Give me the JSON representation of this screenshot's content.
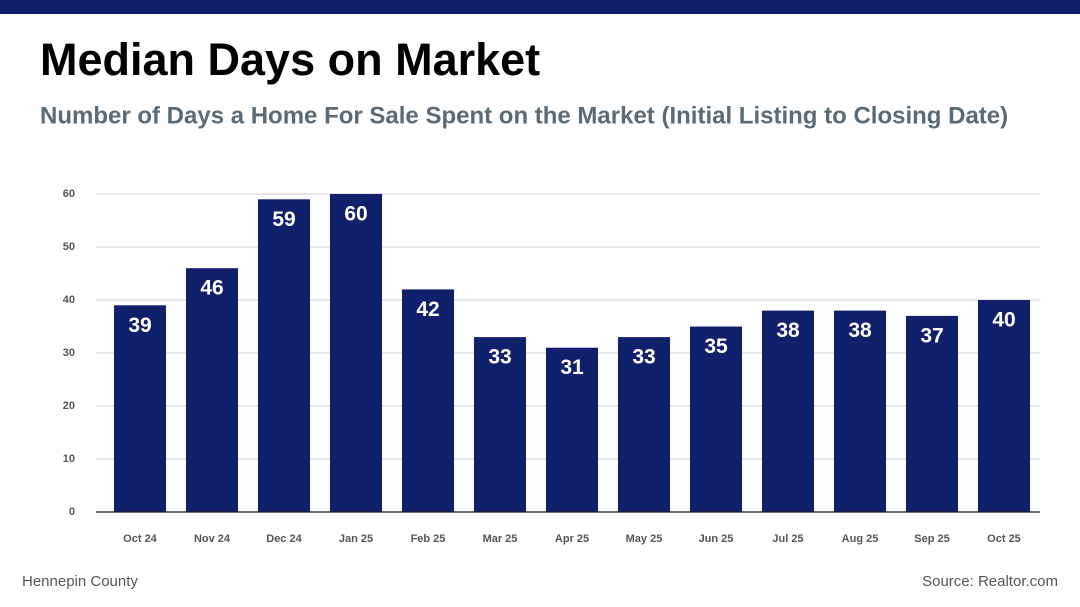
{
  "chart_data": {
    "type": "bar",
    "title": "Median Days on Market",
    "subtitle": "Number of Days a Home For Sale Spent on the Market (Initial Listing to Closing Date)",
    "categories": [
      "Oct 24",
      "Nov 24",
      "Dec 24",
      "Jan 25",
      "Feb 25",
      "Mar 25",
      "Apr 25",
      "May 25",
      "Jun 25",
      "Jul 25",
      "Aug 25",
      "Sep 25",
      "Oct 25"
    ],
    "values": [
      39,
      46,
      59,
      60,
      42,
      33,
      31,
      33,
      35,
      38,
      38,
      37,
      40
    ],
    "color": "#121f6b",
    "ylim": [
      0,
      60
    ],
    "yticks": [
      0,
      10,
      20,
      30,
      40,
      50,
      60
    ],
    "grid": true
  },
  "footer": {
    "region": "Hennepin County",
    "source": "Source: Realtor.com"
  }
}
